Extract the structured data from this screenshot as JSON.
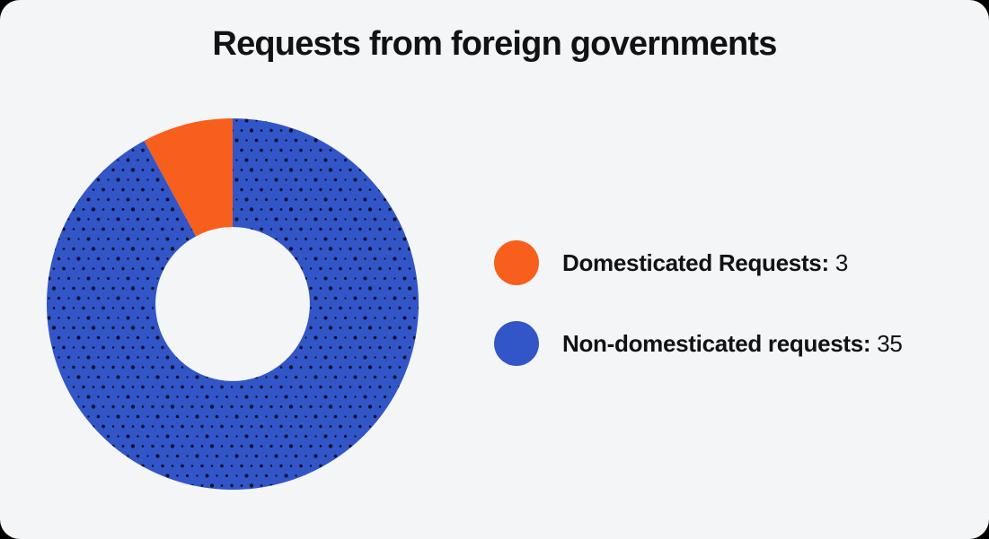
{
  "title": "Requests from foreign governments",
  "colors": {
    "page_bg": "#000000",
    "card_bg": "#F4F5F7",
    "title_text": "#111215",
    "orange": "#F85E1C",
    "blue": "#3256C8",
    "texture_dot": "#0A0F2E"
  },
  "chart_data": {
    "type": "pie",
    "variant": "donut",
    "title": "Requests from foreign governments",
    "categories": [
      "Domesticated Requests",
      "Non-domesticated requests"
    ],
    "values": [
      3,
      35
    ],
    "total": 38,
    "slices": [
      {
        "label": "Domesticated Requests",
        "value": 3,
        "color": "#F85E1C",
        "textured": false
      },
      {
        "label": "Non-domesticated requests",
        "value": 35,
        "color": "#3256C8",
        "textured": true
      }
    ],
    "texture": "halftone-dots",
    "inner_radius_ratio": 0.415,
    "rotation_deg": -28.42,
    "legend_position": "right",
    "data_labels": false
  },
  "legend": {
    "items": [
      {
        "label": "Domesticated Requests:",
        "value": "3",
        "color": "#F85E1C"
      },
      {
        "label": "Non-domesticated requests:",
        "value": "35",
        "color": "#3256C8"
      }
    ]
  }
}
